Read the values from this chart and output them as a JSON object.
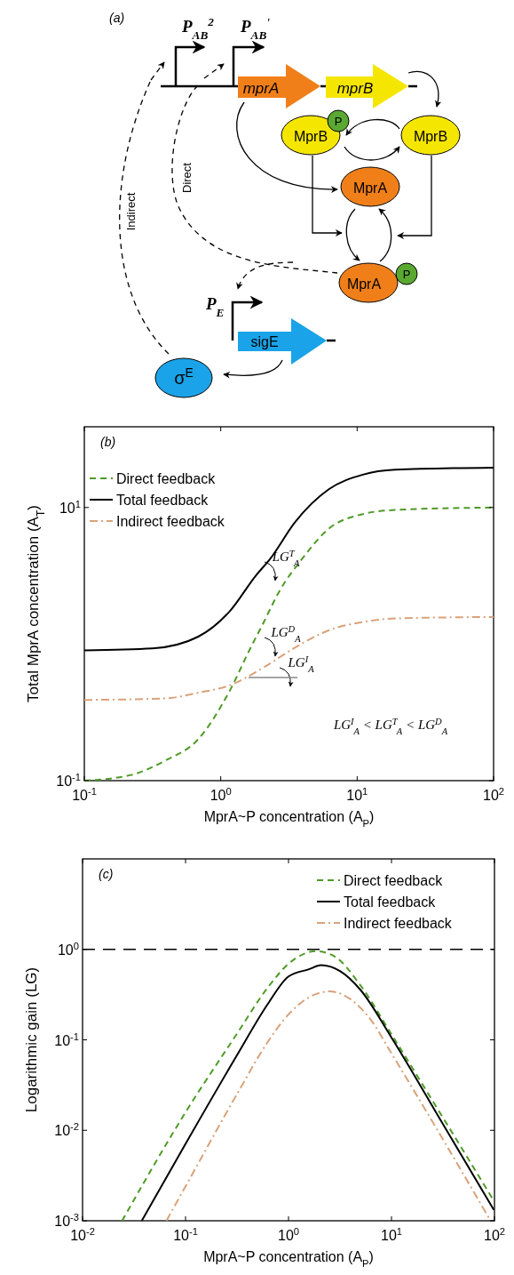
{
  "chart_data": [
    {
      "type": "other",
      "annotations": [
        "(a)",
        "P$_{AB}$$^{2}$",
        "P$_{AB}$$^{'}$",
        "mprA",
        "mprB",
        "MprB",
        "P",
        "MprB",
        "MprA",
        "MprA",
        "P",
        "P$_{E}$",
        "sigE",
        "σ$^{E}$",
        "Indirect",
        "Direct"
      ]
    },
    {
      "type": "line",
      "xlabel": "MprA~P concentration (A$_{P}$)",
      "ylabel": "Total MprA concentration (A$_{T}$)",
      "log": "xy",
      "xlim": [
        0.1,
        100
      ],
      "ylim": [
        0.1,
        39
      ],
      "xticks": [
        {
          "value": 0.1,
          "label": "10$^{-1}$"
        },
        {
          "value": 1,
          "label": "10$^{0}$"
        },
        {
          "value": 10,
          "label": "10$^{1}$"
        },
        {
          "value": 100,
          "label": "10$^{2}$"
        }
      ],
      "yticks": [
        {
          "value": 0.1,
          "label": "10$^{-1}$"
        },
        {
          "value": 10,
          "label": "10$^{1}$"
        }
      ],
      "legend": "top left",
      "series": [
        {
          "name": "Direct feedback",
          "color": "#4e9a26",
          "line_style": "dashed",
          "x": [
            0.1,
            0.22,
            0.39,
            0.68,
            1.17,
            1.62,
            2.04,
            2.69,
            3.98,
            6.17,
            11,
            19,
            100
          ],
          "values": [
            0.1,
            0.11,
            0.14,
            0.2,
            0.46,
            0.9,
            1.41,
            2.44,
            4.25,
            6.98,
            8.95,
            9.6,
            10
          ]
        },
        {
          "name": "Total feedback",
          "color": "#000000",
          "line_style": "solid",
          "x": [
            0.1,
            0.316,
            0.68,
            1.17,
            1.82,
            2.3,
            3.5,
            6.2,
            11,
            19,
            100
          ],
          "values": [
            0.9,
            0.93,
            1.13,
            1.75,
            3.2,
            4.2,
            7.8,
            13.6,
            17.4,
            18.9,
            19.6
          ]
        },
        {
          "name": "Indirect feedback",
          "color": "#d9a27a",
          "line_style": "dashdot",
          "x": [
            0.1,
            0.39,
            0.68,
            1.17,
            2.04,
            3.55,
            6.17,
            11,
            19,
            100
          ],
          "values": [
            0.39,
            0.4,
            0.44,
            0.5,
            0.67,
            0.95,
            1.26,
            1.45,
            1.54,
            1.58
          ]
        }
      ],
      "annotations": [
        "(b)",
        "LG$^{T}$$_{A}$",
        "LG$^{D}$$_{A}$",
        {
          "text": "LG$^{I}$$_{A}$",
          "x": 1.6,
          "y": 0.57
        },
        "LG$^{I}$$_{A}$ < LG$^{T}$$_{A}$ < LG$^{D}$$_{A}$"
      ]
    },
    {
      "type": "line",
      "xlabel": "MprA~P concentration (A$_{P}$)",
      "ylabel": "Logarithmic gain (LG)",
      "log": "xy",
      "xlim": [
        0.01,
        100
      ],
      "ylim": [
        0.001,
        10
      ],
      "xticks": [
        {
          "value": 0.01,
          "label": "10$^{-2}$"
        },
        {
          "value": 0.1,
          "label": "10$^{-1}$"
        },
        {
          "value": 1,
          "label": "10$^{0}$"
        },
        {
          "value": 10,
          "label": "10$^{1}$"
        },
        {
          "value": 100,
          "label": "10$^{2}$"
        }
      ],
      "yticks": [
        {
          "value": 0.001,
          "label": "10$^{-3}$"
        },
        {
          "value": 0.01,
          "label": "10$^{-2}$"
        },
        {
          "value": 0.1,
          "label": "10$^{-1}$"
        },
        {
          "value": 1,
          "label": "10$^{0}$"
        }
      ],
      "legend": "top right",
      "ref_lines": [
        {
          "axis": "y",
          "value": 1,
          "color": "#000000",
          "line_style": "dashed"
        }
      ],
      "series": [
        {
          "name": "Direct feedback",
          "color": "#4e9a26",
          "line_style": "dashed",
          "x": [
            0.0242,
            0.1,
            0.316,
            0.631,
            1,
            1.41,
            1.85,
            2.82,
            5.01,
            10,
            31.6,
            100
          ],
          "values": [
            0.001,
            0.0158,
            0.117,
            0.38,
            0.692,
            0.891,
            0.955,
            0.832,
            0.398,
            0.115,
            0.0138,
            0.00162
          ]
        },
        {
          "name": "Total feedback",
          "color": "#000000",
          "line_style": "solid",
          "x": [
            0.0376,
            0.1,
            0.316,
            0.631,
            1,
            1.58,
            2.07,
            3.16,
            5.01,
            10,
            31.6,
            98.6
          ],
          "values": [
            0.001,
            0.00708,
            0.0676,
            0.25,
            0.501,
            0.603,
            0.668,
            0.575,
            0.355,
            0.106,
            0.0117,
            0.00132
          ]
        },
        {
          "name": "Indirect feedback",
          "color": "#d9a27a",
          "line_style": "dashdot",
          "x": [
            0.0653,
            0.1,
            0.316,
            0.631,
            1,
            1.58,
            2.51,
            3.98,
            6.31,
            10,
            31.6,
            91.6
          ],
          "values": [
            0.001,
            0.0024,
            0.0251,
            0.0955,
            0.191,
            0.295,
            0.343,
            0.282,
            0.166,
            0.0708,
            0.00794,
            0.001
          ]
        }
      ],
      "annotations": [
        "(c)"
      ]
    }
  ]
}
